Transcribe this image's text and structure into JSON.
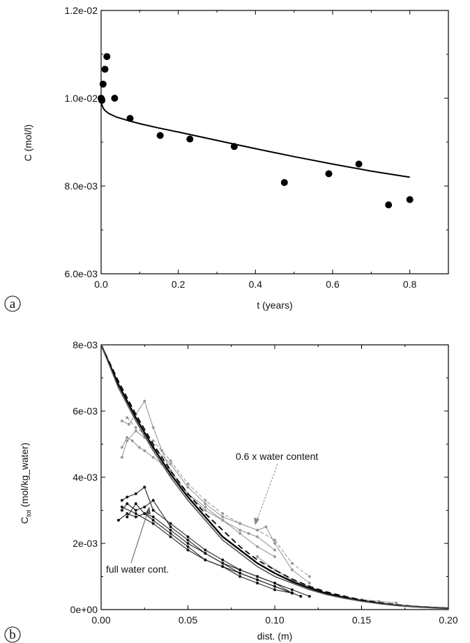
{
  "chart_data": [
    {
      "panel": "a",
      "type": "scatter",
      "xlabel": "t (years)",
      "ylabel": "C (mol/l)",
      "xlim": [
        0,
        0.9
      ],
      "ylim": [
        0.006,
        0.012
      ],
      "xticks": [
        "0.0",
        "0.2",
        "0.4",
        "0.6",
        "0.8"
      ],
      "yticks": [
        "6.0e-03",
        "8.0e-03",
        "1.0e-02",
        "1.2e-02"
      ],
      "grid": false,
      "series": [
        {
          "kind": "points",
          "x": [
            0.0,
            0.002,
            0.005,
            0.01,
            0.015,
            0.035,
            0.075,
            0.153,
            0.23,
            0.345,
            0.475,
            0.59,
            0.668,
            0.745,
            0.8
          ],
          "y": [
            0.01,
            0.00995,
            0.01032,
            0.01066,
            0.01095,
            0.01,
            0.00954,
            0.00915,
            0.00907,
            0.0089,
            0.00808,
            0.00828,
            0.0085,
            0.00757,
            0.00769
          ]
        },
        {
          "kind": "line",
          "x": [
            0.0,
            0.005,
            0.01,
            0.02,
            0.04,
            0.07,
            0.1,
            0.15,
            0.2,
            0.3,
            0.4,
            0.5,
            0.6,
            0.7,
            0.8
          ],
          "y": [
            0.0099,
            0.00978,
            0.00972,
            0.00965,
            0.00957,
            0.00949,
            0.00942,
            0.00932,
            0.00923,
            0.00904,
            0.00885,
            0.00867,
            0.0085,
            0.00834,
            0.0082
          ]
        }
      ]
    },
    {
      "panel": "b",
      "type": "line",
      "xlabel": "dist. (m)",
      "ylabel_main": "C",
      "ylabel_sub": "tot",
      "ylabel_rest": " (mol/kg_water)",
      "xlim": [
        0,
        0.2
      ],
      "ylim": [
        0,
        0.008
      ],
      "xticks": [
        "0.00",
        "0.05",
        "0.10",
        "0.15",
        "0.20"
      ],
      "yticks": [
        "0e+00",
        "2e-03",
        "4e-03",
        "6e-03",
        "8e-03"
      ],
      "grid": false,
      "annotations": [
        "0.6 x water content",
        "full water cont."
      ],
      "series": [
        {
          "kind": "model-solid",
          "x": [
            0,
            0.01,
            0.02,
            0.03,
            0.04,
            0.05,
            0.06,
            0.07,
            0.08,
            0.09,
            0.1,
            0.11,
            0.12,
            0.13,
            0.14,
            0.15,
            0.16,
            0.17,
            0.18,
            0.19,
            0.2
          ],
          "y": [
            0.008,
            0.0068,
            0.0058,
            0.0049,
            0.0041,
            0.0034,
            0.0028,
            0.0022,
            0.0018,
            0.0014,
            0.0011,
            0.00085,
            0.00065,
            0.00048,
            0.00036,
            0.00026,
            0.00019,
            0.00013,
            9e-05,
            6e-05,
            4e-05
          ]
        },
        {
          "kind": "model-dashed",
          "x": [
            0,
            0.01,
            0.02,
            0.03,
            0.04,
            0.05,
            0.06,
            0.07,
            0.08,
            0.09,
            0.1,
            0.11,
            0.12,
            0.13,
            0.14,
            0.15,
            0.16,
            0.17,
            0.18,
            0.19,
            0.2
          ],
          "y": [
            0.008,
            0.0069,
            0.0059,
            0.005,
            0.0042,
            0.0035,
            0.0029,
            0.0024,
            0.0019,
            0.0015,
            0.0012,
            0.00092,
            0.0007,
            0.00053,
            0.0004,
            0.00029,
            0.00021,
            0.00015,
            0.0001,
            7e-05,
            4e-05
          ]
        },
        {
          "kind": "model-gray",
          "x": [
            0,
            0.01,
            0.02,
            0.03,
            0.04,
            0.05,
            0.06,
            0.07,
            0.08,
            0.09,
            0.1,
            0.11,
            0.12,
            0.13,
            0.14,
            0.15,
            0.16,
            0.17,
            0.18,
            0.19,
            0.2
          ],
          "y": [
            0.008,
            0.0067,
            0.0057,
            0.0048,
            0.004,
            0.0033,
            0.0027,
            0.0021,
            0.0017,
            0.0013,
            0.001,
            0.0008,
            0.0006,
            0.00045,
            0.00034,
            0.00025,
            0.00018,
            0.00013,
            9e-05,
            6e-05,
            4e-05
          ]
        },
        {
          "kind": "data-gray",
          "x": [
            0.012,
            0.016,
            0.02,
            0.025,
            0.03,
            0.035,
            0.04,
            0.05,
            0.06,
            0.07,
            0.08,
            0.085,
            0.09,
            0.1
          ],
          "y": [
            0.0057,
            0.0056,
            0.0059,
            0.0063,
            0.0055,
            0.0048,
            0.0042,
            0.0035,
            0.003,
            0.0027,
            0.0024,
            0.0023,
            0.0022,
            0.0018
          ]
        },
        {
          "kind": "data-gray",
          "x": [
            0.012,
            0.015,
            0.018,
            0.022,
            0.025,
            0.03,
            0.035,
            0.04,
            0.05,
            0.06,
            0.07,
            0.08,
            0.09,
            0.1
          ],
          "y": [
            0.0049,
            0.0052,
            0.0051,
            0.0049,
            0.0048,
            0.0046,
            0.0044,
            0.0041,
            0.0035,
            0.0031,
            0.0027,
            0.0023,
            0.0019,
            0.0016
          ]
        },
        {
          "kind": "data-gray",
          "x": [
            0.012,
            0.015,
            0.02,
            0.025,
            0.03,
            0.04,
            0.05,
            0.06,
            0.07,
            0.08,
            0.09,
            0.095,
            0.1,
            0.11,
            0.12
          ],
          "y": [
            0.0046,
            0.0051,
            0.0054,
            0.0052,
            0.0049,
            0.0044,
            0.0037,
            0.0032,
            0.0028,
            0.0026,
            0.0024,
            0.0025,
            0.002,
            0.0012,
            0.0008
          ]
        },
        {
          "kind": "data-gray-dashed",
          "x": [
            0.015,
            0.02,
            0.025,
            0.03,
            0.04,
            0.05,
            0.06,
            0.07,
            0.08,
            0.09,
            0.1,
            0.11,
            0.12
          ],
          "y": [
            0.0058,
            0.0055,
            0.0053,
            0.0051,
            0.0045,
            0.0038,
            0.0033,
            0.0029,
            0.0026,
            0.0024,
            0.0021,
            0.0014,
            0.001
          ]
        },
        {
          "kind": "data-gray",
          "x": [
            0.09,
            0.1,
            0.11,
            0.12,
            0.13,
            0.14,
            0.15,
            0.16,
            0.17
          ],
          "y": [
            0.0016,
            0.0012,
            0.0009,
            0.0007,
            0.0005,
            0.0004,
            0.0003,
            0.00025,
            0.0002
          ]
        },
        {
          "kind": "data-black",
          "x": [
            0.012,
            0.015,
            0.02,
            0.025,
            0.03,
            0.04,
            0.05,
            0.06,
            0.07,
            0.08,
            0.09,
            0.1,
            0.11
          ],
          "y": [
            0.0033,
            0.0034,
            0.0035,
            0.0037,
            0.003,
            0.0026,
            0.0022,
            0.0018,
            0.0015,
            0.0012,
            0.001,
            0.0008,
            0.0005
          ]
        },
        {
          "kind": "data-black",
          "x": [
            0.012,
            0.015,
            0.02,
            0.025,
            0.03,
            0.04,
            0.05,
            0.06,
            0.07,
            0.08,
            0.09,
            0.1,
            0.11,
            0.12
          ],
          "y": [
            0.003,
            0.0032,
            0.003,
            0.0031,
            0.0033,
            0.0025,
            0.0021,
            0.0017,
            0.0014,
            0.0012,
            0.001,
            0.0008,
            0.0006,
            0.0004
          ]
        },
        {
          "kind": "data-black",
          "x": [
            0.01,
            0.015,
            0.02,
            0.025,
            0.03,
            0.04,
            0.05,
            0.06,
            0.07,
            0.08,
            0.09,
            0.1,
            0.11
          ],
          "y": [
            0.0027,
            0.0029,
            0.0028,
            0.0029,
            0.0027,
            0.0023,
            0.0019,
            0.0015,
            0.0013,
            0.001,
            0.0008,
            0.0006,
            0.0005
          ]
        },
        {
          "kind": "data-black",
          "x": [
            0.012,
            0.02,
            0.03,
            0.04,
            0.05,
            0.06,
            0.07,
            0.08,
            0.09,
            0.1,
            0.11,
            0.115
          ],
          "y": [
            0.0031,
            0.0029,
            0.0026,
            0.0022,
            0.0018,
            0.0015,
            0.0013,
            0.0011,
            0.0009,
            0.0007,
            0.0005,
            0.0004
          ]
        },
        {
          "kind": "data-black",
          "x": [
            0.015,
            0.02,
            0.025,
            0.03,
            0.04,
            0.05,
            0.06,
            0.07,
            0.08,
            0.09,
            0.1,
            0.11
          ],
          "y": [
            0.0028,
            0.0032,
            0.0029,
            0.0028,
            0.0024,
            0.002,
            0.0017,
            0.0014,
            0.0011,
            0.0009,
            0.0007,
            0.0005
          ]
        }
      ]
    }
  ],
  "panels": {
    "a": {
      "label": "a"
    },
    "b": {
      "label": "b"
    }
  }
}
